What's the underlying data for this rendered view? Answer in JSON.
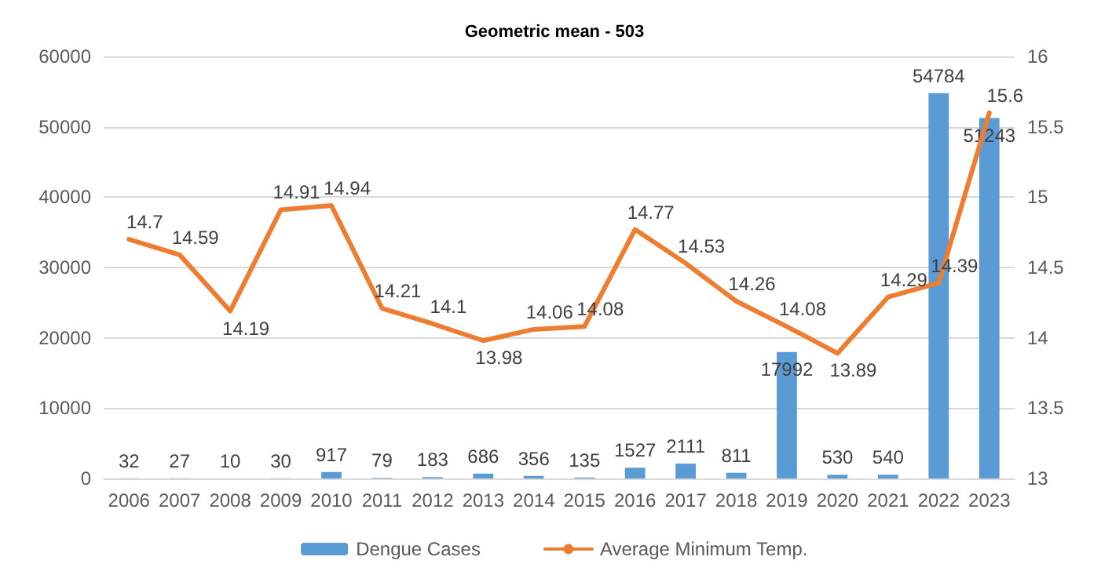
{
  "chart_data": {
    "type": "bar",
    "title": "Geometric mean - 503",
    "categories": [
      "2006",
      "2007",
      "2008",
      "2009",
      "2010",
      "2011",
      "2012",
      "2013",
      "2014",
      "2015",
      "2016",
      "2017",
      "2018",
      "2019",
      "2020",
      "2021",
      "2022",
      "2023"
    ],
    "series": [
      {
        "name": "Dengue Cases",
        "color": "#5b9bd5",
        "values": [
          32,
          27,
          10,
          30,
          917,
          79,
          183,
          686,
          356,
          135,
          1527,
          2111,
          811,
          17992,
          530,
          540,
          54784,
          51243
        ]
      },
      {
        "name": "Average Minimum Temp.",
        "type": "line",
        "axis": "y2",
        "color": "#ed7d31",
        "values": [
          14.7,
          14.59,
          14.19,
          14.91,
          14.94,
          14.21,
          14.1,
          13.98,
          14.06,
          14.08,
          14.77,
          14.53,
          14.26,
          14.08,
          13.89,
          14.29,
          14.39,
          15.6
        ]
      }
    ],
    "ylim": [
      0,
      60000
    ],
    "yticks": [
      0,
      10000,
      20000,
      30000,
      40000,
      50000,
      60000
    ],
    "y2lim": [
      13,
      16
    ],
    "y2ticks": [
      13,
      13.5,
      14,
      14.5,
      15,
      15.5,
      16
    ],
    "grid": "y",
    "legend": "bottom",
    "data_labels": true,
    "marker": "none",
    "line_style": "solid"
  }
}
